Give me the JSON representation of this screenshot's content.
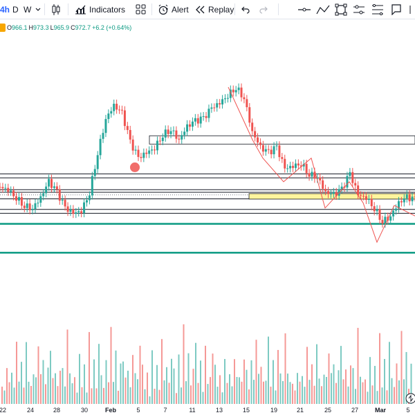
{
  "toolbar": {
    "timeframe_active": "4h",
    "timeframe_d": "D",
    "timeframe_w": "W",
    "indicators_label": "Indicators",
    "alert_label": "Alert",
    "replay_label": "Replay"
  },
  "legend": {
    "open": "966.1",
    "high": "973.3",
    "low": "965.9",
    "close": "972.7",
    "change": "+6.2 (+0.64%)",
    "open_key": "O",
    "high_key": "H",
    "low_key": "L",
    "close_key": "C"
  },
  "colors": {
    "up": "#26a69a",
    "down": "#ef5350",
    "accent": "#089981",
    "zone": "#fff59d",
    "dot": "#ef5350"
  },
  "chart_data": {
    "type": "candlestick",
    "x_ticks": [
      "22",
      "24",
      "28",
      "30",
      "Feb",
      "5",
      "7",
      "11",
      "13",
      "15",
      "19",
      "21",
      "25",
      "27",
      "Mar",
      "5"
    ],
    "legend": "O966.1 H973.3 L965.9 C972.7 +6.2 (+0.64%)",
    "levels": [
      {
        "style": "black",
        "y_fraction": 0.53
      },
      {
        "style": "black",
        "y_fraction": 0.545
      },
      {
        "style": "black",
        "y_fraction": 0.59
      },
      {
        "style": "black",
        "y_fraction": 0.6
      },
      {
        "style": "black",
        "y_fraction": 0.625
      },
      {
        "style": "black",
        "y_fraction": 0.665
      },
      {
        "style": "black",
        "y_fraction": 0.68
      },
      {
        "style": "green",
        "y_fraction": 0.72
      },
      {
        "style": "green",
        "y_fraction": 0.83
      }
    ],
    "close_path": [
      0.58,
      0.59,
      0.62,
      0.65,
      0.66,
      0.62,
      0.56,
      0.6,
      0.66,
      0.68,
      0.67,
      0.6,
      0.45,
      0.32,
      0.27,
      0.3,
      0.41,
      0.47,
      0.45,
      0.43,
      0.38,
      0.36,
      0.4,
      0.35,
      0.33,
      0.32,
      0.28,
      0.26,
      0.23,
      0.2,
      0.24,
      0.37,
      0.43,
      0.45,
      0.43,
      0.51,
      0.5,
      0.49,
      0.53,
      0.54,
      0.6,
      0.61,
      0.59,
      0.53,
      0.61,
      0.62,
      0.66,
      0.71,
      0.69,
      0.64,
      0.62,
      0.63
    ],
    "volume_pattern": [
      0.35,
      0.15,
      0.6,
      0.25,
      0.45,
      0.2,
      0.8,
      0.3,
      0.5,
      0.25,
      0.7,
      0.4,
      0.2,
      0.55,
      0.3,
      0.9,
      0.35,
      0.6,
      0.25,
      0.45,
      0.75,
      0.3,
      0.5,
      0.2,
      0.65,
      0.4,
      0.3,
      0.85,
      0.45,
      0.25
    ]
  }
}
